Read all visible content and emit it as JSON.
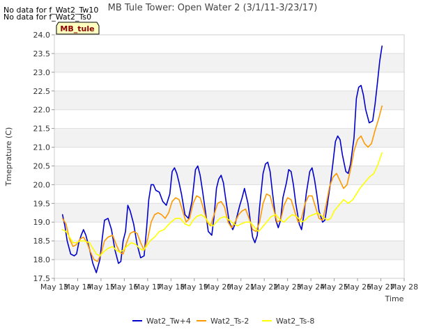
{
  "nodata": [
    "No data for f_Wat2_Tw10",
    "No data for f_Wat2_Ts0"
  ],
  "badge": {
    "label": "MB_tule",
    "bg": "#ffffc0",
    "border": "#000000"
  },
  "chart_data": {
    "type": "line",
    "title": "MB Tule Tower: Open Water 2 (3/1/11-3/23/17)",
    "xlabel": "Time",
    "ylabel": "Tmeprature (C)",
    "xlim": [
      13,
      28
    ],
    "ylim": [
      17.5,
      24.0
    ],
    "xticks": [
      {
        "v": 13,
        "label": "May 13"
      },
      {
        "v": 14,
        "label": "May 14"
      },
      {
        "v": 15,
        "label": "May 15"
      },
      {
        "v": 16,
        "label": "May 16"
      },
      {
        "v": 17,
        "label": "May 17"
      },
      {
        "v": 18,
        "label": "May 18"
      },
      {
        "v": 19,
        "label": "May 19"
      },
      {
        "v": 20,
        "label": "May 20"
      },
      {
        "v": 21,
        "label": "May 21"
      },
      {
        "v": 22,
        "label": "May 22"
      },
      {
        "v": 23,
        "label": "May 23"
      },
      {
        "v": 24,
        "label": "May 24"
      },
      {
        "v": 25,
        "label": "May 25"
      },
      {
        "v": 26,
        "label": "May 26"
      },
      {
        "v": 27,
        "label": "May 27"
      },
      {
        "v": 28,
        "label": "May 28"
      }
    ],
    "yticks": [
      "17.5",
      "18.0",
      "18.5",
      "19.0",
      "19.5",
      "20.0",
      "20.5",
      "21.0",
      "21.5",
      "22.0",
      "22.5",
      "23.0",
      "23.5",
      "24.0"
    ],
    "grid": true,
    "legend_position": "bottom",
    "series": [
      {
        "name": "Wat2_Tw+4",
        "color": "#0000cc",
        "x": [
          13.35,
          13.45,
          13.55,
          13.7,
          13.85,
          13.95,
          14.05,
          14.15,
          14.25,
          14.35,
          14.5,
          14.65,
          14.8,
          14.95,
          15.05,
          15.15,
          15.3,
          15.45,
          15.6,
          15.75,
          15.85,
          15.95,
          16.05,
          16.15,
          16.25,
          16.4,
          16.55,
          16.7,
          16.85,
          16.95,
          17.05,
          17.15,
          17.25,
          17.35,
          17.5,
          17.65,
          17.8,
          17.95,
          18.05,
          18.15,
          18.25,
          18.35,
          18.45,
          18.6,
          18.75,
          18.9,
          19.05,
          19.15,
          19.25,
          19.35,
          19.45,
          19.6,
          19.75,
          19.85,
          19.95,
          20.05,
          20.15,
          20.25,
          20.35,
          20.5,
          20.65,
          20.75,
          20.85,
          20.95,
          21.05,
          21.15,
          21.3,
          21.4,
          21.5,
          21.6,
          21.7,
          21.8,
          21.95,
          22.05,
          22.15,
          22.25,
          22.35,
          22.5,
          22.6,
          22.7,
          22.8,
          22.95,
          23.05,
          23.15,
          23.25,
          23.35,
          23.5,
          23.6,
          23.7,
          23.8,
          23.95,
          24.05,
          24.15,
          24.25,
          24.35,
          24.5,
          24.6,
          24.7,
          24.85,
          24.95,
          25.05,
          25.15,
          25.25,
          25.35,
          25.5,
          25.6,
          25.7,
          25.85,
          25.95,
          26.05,
          26.15,
          26.25,
          26.35,
          26.5,
          26.65,
          26.75,
          26.85,
          26.95,
          27.05
        ],
        "y": [
          19.2,
          18.9,
          18.5,
          18.15,
          18.1,
          18.15,
          18.45,
          18.65,
          18.8,
          18.65,
          18.3,
          17.9,
          17.65,
          18.0,
          18.55,
          19.05,
          19.1,
          18.8,
          18.25,
          17.9,
          17.95,
          18.5,
          18.75,
          19.45,
          19.3,
          18.95,
          18.4,
          18.05,
          18.1,
          18.8,
          19.6,
          20.0,
          20.0,
          19.85,
          19.8,
          19.55,
          19.45,
          19.75,
          20.35,
          20.45,
          20.3,
          20.05,
          19.75,
          19.2,
          19.1,
          19.55,
          20.4,
          20.5,
          20.25,
          19.85,
          19.4,
          18.75,
          18.65,
          19.15,
          19.9,
          20.15,
          20.25,
          20.05,
          19.6,
          19.0,
          18.8,
          18.95,
          19.2,
          19.45,
          19.65,
          19.9,
          19.5,
          19.05,
          18.6,
          18.45,
          18.65,
          19.4,
          20.3,
          20.55,
          20.6,
          20.35,
          19.8,
          19.05,
          18.85,
          19.05,
          19.65,
          20.05,
          20.4,
          20.35,
          20.0,
          19.5,
          18.95,
          18.8,
          19.2,
          19.75,
          20.35,
          20.45,
          20.15,
          19.75,
          19.3,
          19.0,
          19.05,
          19.45,
          20.1,
          20.6,
          21.15,
          21.3,
          21.2,
          20.8,
          20.35,
          20.3,
          20.55,
          21.25,
          22.3,
          22.6,
          22.65,
          22.4,
          22.0,
          21.65,
          21.7,
          22.15,
          22.7,
          23.3,
          23.7
        ],
        "start": 13.35
      },
      {
        "name": "Wat2_Ts-2",
        "color": "#ff9900",
        "x": [
          13.35,
          13.5,
          13.65,
          13.8,
          13.95,
          14.1,
          14.25,
          14.4,
          14.55,
          14.7,
          14.85,
          15.0,
          15.15,
          15.3,
          15.5,
          15.65,
          15.8,
          15.95,
          16.1,
          16.25,
          16.4,
          16.55,
          16.7,
          16.85,
          17.0,
          17.15,
          17.3,
          17.45,
          17.6,
          17.75,
          17.9,
          18.05,
          18.2,
          18.35,
          18.5,
          18.65,
          18.8,
          18.95,
          19.1,
          19.25,
          19.4,
          19.55,
          19.7,
          19.85,
          20.0,
          20.15,
          20.3,
          20.45,
          20.6,
          20.75,
          20.9,
          21.05,
          21.2,
          21.35,
          21.5,
          21.65,
          21.8,
          21.95,
          22.1,
          22.25,
          22.4,
          22.55,
          22.7,
          22.85,
          23.0,
          23.15,
          23.3,
          23.45,
          23.6,
          23.75,
          23.9,
          24.05,
          24.2,
          24.35,
          24.5,
          24.65,
          24.8,
          24.95,
          25.1,
          25.25,
          25.4,
          25.55,
          25.7,
          25.85,
          26.0,
          26.15,
          26.3,
          26.45,
          26.6,
          26.75,
          26.9,
          27.05
        ],
        "y": [
          19.1,
          18.95,
          18.55,
          18.35,
          18.4,
          18.55,
          18.6,
          18.45,
          18.2,
          18.0,
          17.95,
          18.15,
          18.5,
          18.6,
          18.65,
          18.4,
          18.2,
          18.15,
          18.45,
          18.7,
          18.75,
          18.7,
          18.45,
          18.25,
          18.55,
          19.0,
          19.2,
          19.25,
          19.2,
          19.1,
          19.25,
          19.55,
          19.65,
          19.6,
          19.3,
          19.0,
          19.1,
          19.5,
          19.7,
          19.65,
          19.35,
          19.0,
          18.9,
          19.2,
          19.5,
          19.55,
          19.4,
          19.0,
          18.85,
          19.0,
          19.2,
          19.3,
          19.35,
          19.1,
          18.8,
          18.75,
          19.0,
          19.5,
          19.75,
          19.7,
          19.35,
          19.0,
          19.05,
          19.45,
          19.65,
          19.6,
          19.3,
          19.0,
          19.1,
          19.5,
          19.7,
          19.7,
          19.4,
          19.1,
          19.05,
          19.45,
          19.95,
          20.2,
          20.3,
          20.1,
          19.9,
          20.0,
          20.4,
          20.9,
          21.2,
          21.3,
          21.1,
          21.0,
          21.1,
          21.45,
          21.75,
          22.1
        ]
      },
      {
        "name": "Wat2_Ts-8",
        "color": "#ffff00",
        "x": [
          13.35,
          13.5,
          13.65,
          13.8,
          13.95,
          14.1,
          14.3,
          14.5,
          14.65,
          14.8,
          14.95,
          15.1,
          15.3,
          15.5,
          15.65,
          15.8,
          15.95,
          16.1,
          16.3,
          16.5,
          16.65,
          16.8,
          16.95,
          17.1,
          17.3,
          17.5,
          17.7,
          17.85,
          18.0,
          18.2,
          18.4,
          18.6,
          18.8,
          18.95,
          19.1,
          19.3,
          19.5,
          19.65,
          19.8,
          19.95,
          20.1,
          20.3,
          20.5,
          20.7,
          20.85,
          21.0,
          21.2,
          21.4,
          21.6,
          21.75,
          21.9,
          22.1,
          22.3,
          22.5,
          22.7,
          22.85,
          23.0,
          23.2,
          23.4,
          23.6,
          23.75,
          23.9,
          24.1,
          24.3,
          24.5,
          24.7,
          24.85,
          25.0,
          25.2,
          25.4,
          25.6,
          25.8,
          25.95,
          26.1,
          26.3,
          26.5,
          26.7,
          26.85,
          27.05
        ],
        "y": [
          18.8,
          18.75,
          18.6,
          18.45,
          18.45,
          18.5,
          18.5,
          18.45,
          18.3,
          18.15,
          18.1,
          18.2,
          18.3,
          18.35,
          18.25,
          18.2,
          18.25,
          18.35,
          18.45,
          18.4,
          18.3,
          18.25,
          18.35,
          18.5,
          18.6,
          18.75,
          18.8,
          18.9,
          19.0,
          19.1,
          19.1,
          18.95,
          18.9,
          19.05,
          19.15,
          19.2,
          19.1,
          18.95,
          18.9,
          19.0,
          19.1,
          19.15,
          19.05,
          18.95,
          18.9,
          18.95,
          19.0,
          19.0,
          18.85,
          18.75,
          18.85,
          19.0,
          19.15,
          19.2,
          19.05,
          19.0,
          19.1,
          19.2,
          19.15,
          19.0,
          19.05,
          19.15,
          19.2,
          19.25,
          19.15,
          19.05,
          19.1,
          19.3,
          19.45,
          19.6,
          19.5,
          19.6,
          19.75,
          19.9,
          20.05,
          20.2,
          20.3,
          20.5,
          20.85
        ]
      }
    ]
  }
}
